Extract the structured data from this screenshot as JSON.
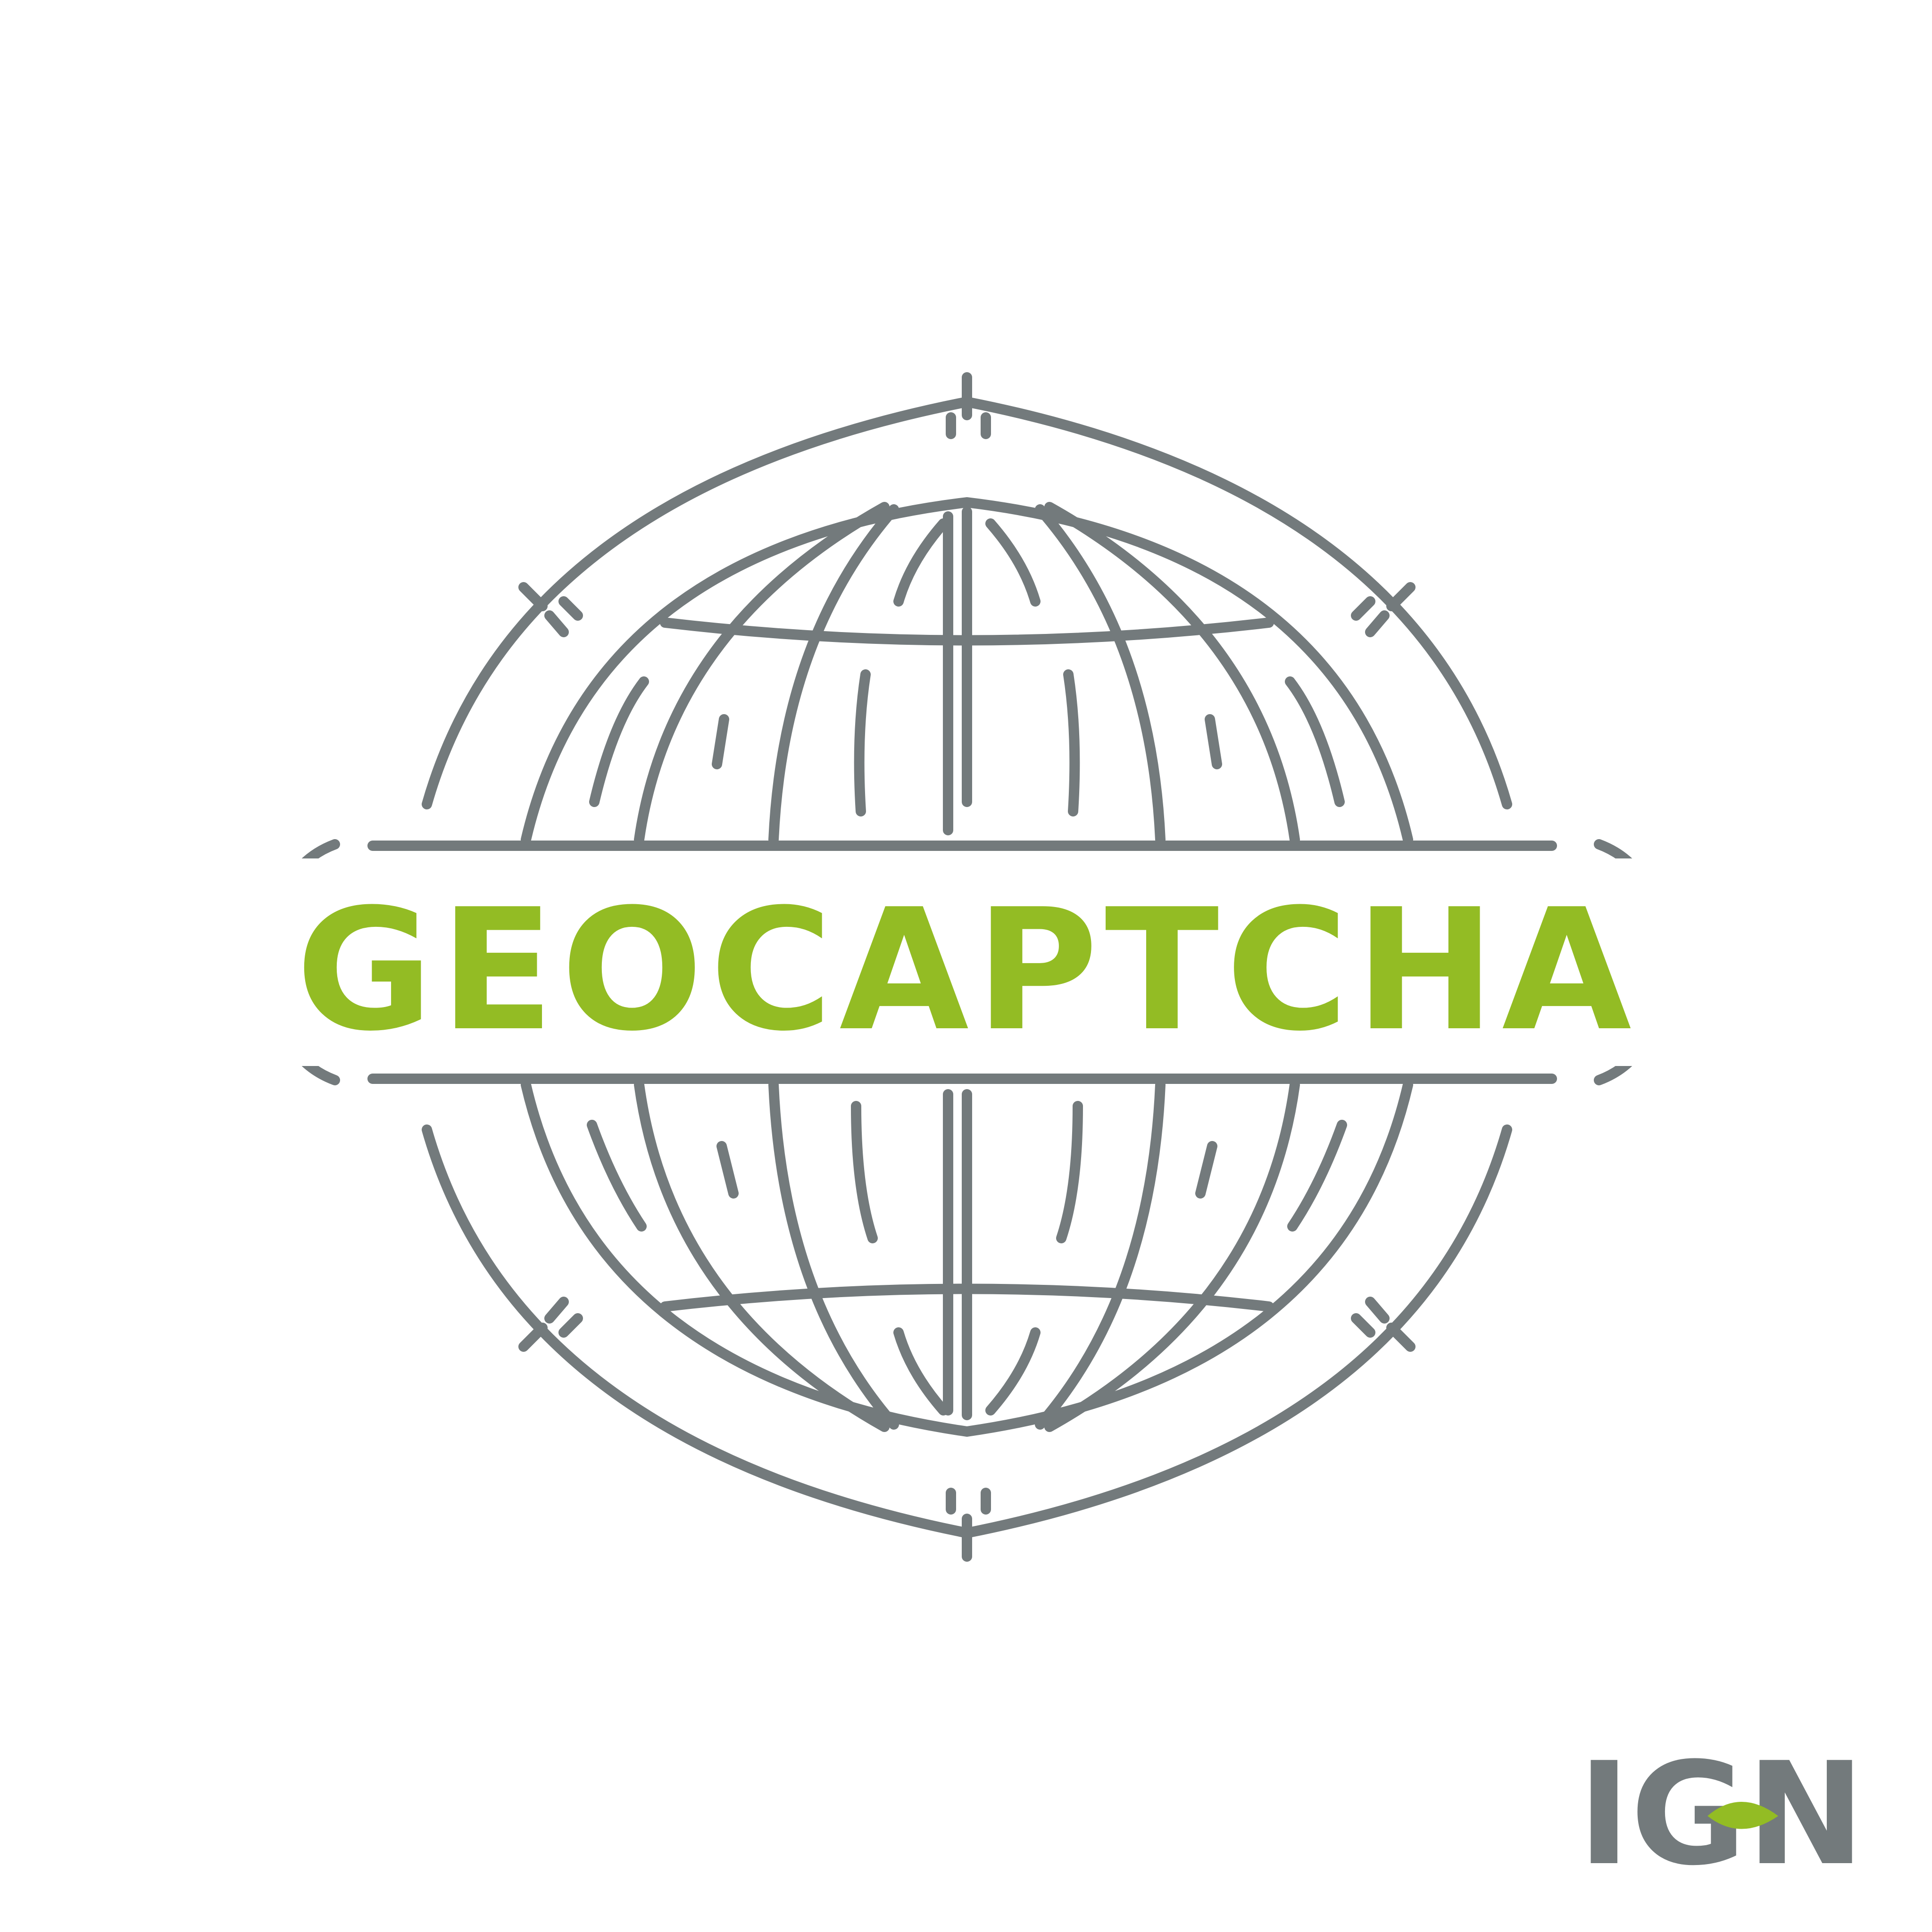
{
  "logo": {
    "wordmark": "GEOCAPTCHA",
    "wordmark_color": "#93bc24",
    "line_color": "#737a7c",
    "icon": "globe-compass-emblem-icon"
  },
  "brand": {
    "name": "IGN",
    "letter_color": "#737a7c",
    "accent_color": "#93bc24",
    "icon": "leaf-icon"
  }
}
